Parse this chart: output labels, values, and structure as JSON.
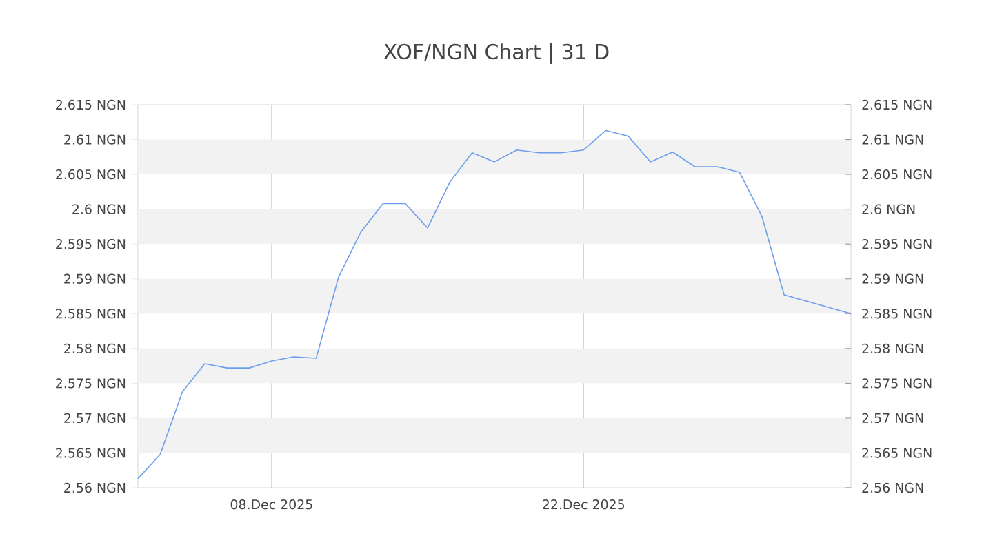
{
  "chart_data": {
    "type": "line",
    "title": "XOF/NGN Chart | 31 D",
    "x": [
      "2025-12-02",
      "2025-12-03",
      "2025-12-04",
      "2025-12-05",
      "2025-12-06",
      "2025-12-07",
      "2025-12-08",
      "2025-12-09",
      "2025-12-10",
      "2025-12-11",
      "2025-12-12",
      "2025-12-13",
      "2025-12-14",
      "2025-12-15",
      "2025-12-16",
      "2025-12-17",
      "2025-12-18",
      "2025-12-19",
      "2025-12-20",
      "2025-12-21",
      "2025-12-22",
      "2025-12-23",
      "2025-12-24",
      "2025-12-25",
      "2025-12-26",
      "2025-12-27",
      "2025-12-28",
      "2025-12-29",
      "2025-12-30",
      "2025-12-31",
      "2026-01-03"
    ],
    "series": [
      {
        "color": "#6d9eeb",
        "values": [
          2.5613,
          2.5648,
          2.5738,
          2.5778,
          2.5772,
          2.5772,
          2.5782,
          2.5788,
          2.5786,
          2.5902,
          2.5967,
          2.6008,
          2.6008,
          2.5973,
          2.6039,
          2.6081,
          2.6068,
          2.6085,
          2.6081,
          2.6081,
          2.6085,
          2.6113,
          2.6105,
          2.6068,
          2.6082,
          2.6061,
          2.6061,
          2.6053,
          2.599,
          2.5877,
          2.585
        ]
      }
    ],
    "xlim": [
      "2025-12-02",
      "2026-01-03"
    ],
    "xticks": [
      {
        "value": "2025-12-08",
        "label": "08.Dec 2025"
      },
      {
        "value": "2025-12-22",
        "label": "22.Dec 2025"
      }
    ],
    "ylim": [
      2.56,
      2.615
    ],
    "yticks": [
      {
        "value": 2.56,
        "label": "2.56 NGN"
      },
      {
        "value": 2.565,
        "label": "2.565 NGN"
      },
      {
        "value": 2.57,
        "label": "2.57 NGN"
      },
      {
        "value": 2.575,
        "label": "2.575 NGN"
      },
      {
        "value": 2.58,
        "label": "2.58 NGN"
      },
      {
        "value": 2.585,
        "label": "2.585 NGN"
      },
      {
        "value": 2.59,
        "label": "2.59 NGN"
      },
      {
        "value": 2.595,
        "label": "2.595 NGN"
      },
      {
        "value": 2.6,
        "label": "2.6 NGN"
      },
      {
        "value": 2.605,
        "label": "2.605 NGN"
      },
      {
        "value": 2.61,
        "label": "2.61 NGN"
      },
      {
        "value": 2.615,
        "label": "2.615 NGN"
      }
    ],
    "y2lim": [
      2.56,
      2.615
    ],
    "y2ticks": [
      {
        "value": 2.56,
        "label": "2.56 NGN"
      },
      {
        "value": 2.565,
        "label": "2.565 NGN"
      },
      {
        "value": 2.57,
        "label": "2.57 NGN"
      },
      {
        "value": 2.575,
        "label": "2.575 NGN"
      },
      {
        "value": 2.58,
        "label": "2.58 NGN"
      },
      {
        "value": 2.585,
        "label": "2.585 NGN"
      },
      {
        "value": 2.59,
        "label": "2.59 NGN"
      },
      {
        "value": 2.595,
        "label": "2.595 NGN"
      },
      {
        "value": 2.6,
        "label": "2.6 NGN"
      },
      {
        "value": 2.605,
        "label": "2.605 NGN"
      },
      {
        "value": 2.61,
        "label": "2.61 NGN"
      },
      {
        "value": 2.615,
        "label": "2.615 NGN"
      }
    ],
    "bands": [
      {
        "axis": "y",
        "from": 2.565,
        "to": 2.57,
        "color": "#f2f2f2"
      },
      {
        "axis": "y",
        "from": 2.575,
        "to": 2.58,
        "color": "#f2f2f2"
      },
      {
        "axis": "y",
        "from": 2.585,
        "to": 2.59,
        "color": "#f2f2f2"
      },
      {
        "axis": "y",
        "from": 2.595,
        "to": 2.6,
        "color": "#f2f2f2"
      },
      {
        "axis": "y",
        "from": 2.605,
        "to": 2.61,
        "color": "#f2f2f2"
      }
    ],
    "grid": "x"
  }
}
